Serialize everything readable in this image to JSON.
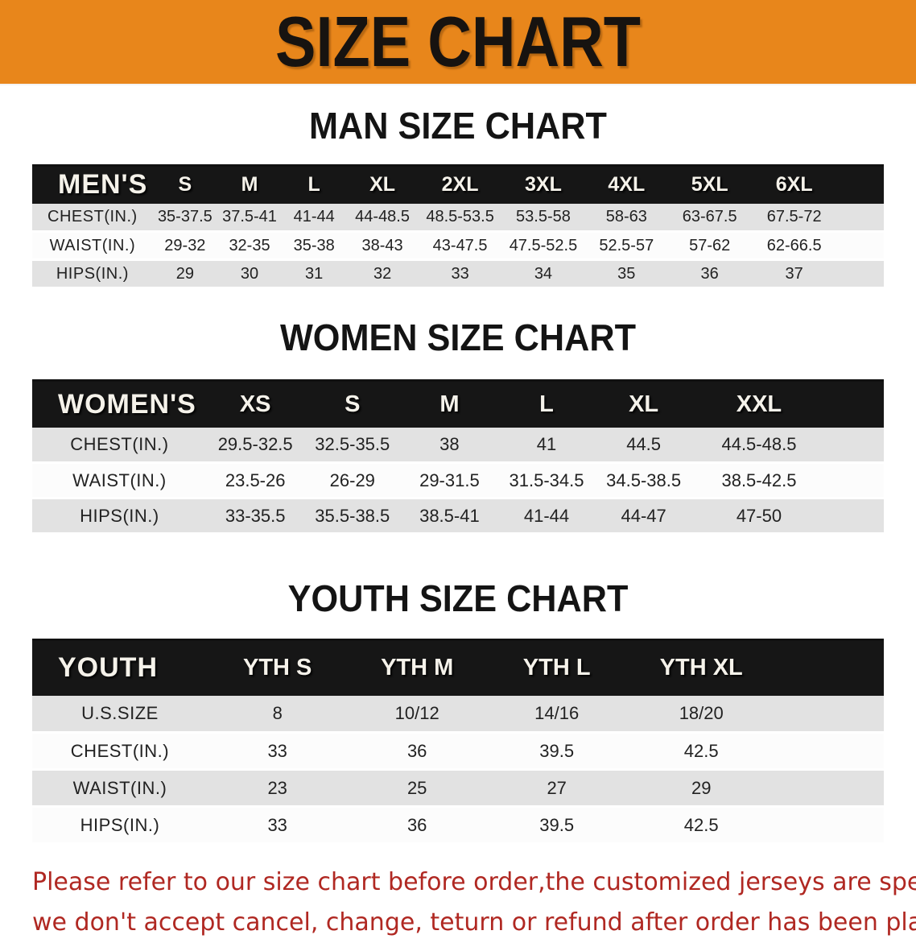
{
  "banner": {
    "title": "SIZE CHART",
    "bg_color": "#E8861B",
    "text_color": "#171310"
  },
  "colors": {
    "table_header_bg": "#161616",
    "row_alt_bg": "#E2E2E2",
    "row_white_bg": "#FCFCFC",
    "footer_text": "#B02822"
  },
  "sections": [
    {
      "title": "MAN SIZE CHART",
      "table": {
        "header_label": "MEN'S",
        "columns": [
          "S",
          "M",
          "L",
          "XL",
          "2XL",
          "3XL",
          "4XL",
          "5XL",
          "6XL"
        ],
        "rows": [
          {
            "label": "CHEST(IN.)",
            "values": [
              "35-37.5",
              "37.5-41",
              "41-44",
              "44-48.5",
              "48.5-53.5",
              "53.5-58",
              "58-63",
              "63-67.5",
              "67.5-72"
            ]
          },
          {
            "label": "WAIST(IN.)",
            "values": [
              "29-32",
              "32-35",
              "35-38",
              "38-43",
              "43-47.5",
              "47.5-52.5",
              "52.5-57",
              "57-62",
              "62-66.5"
            ]
          },
          {
            "label": "HIPS(IN.)",
            "values": [
              "29",
              "30",
              "31",
              "32",
              "33",
              "34",
              "35",
              "36",
              "37"
            ]
          }
        ]
      }
    },
    {
      "title": "WOMEN SIZE CHART",
      "table": {
        "header_label": "WOMEN'S",
        "columns": [
          "XS",
          "S",
          "M",
          "L",
          "XL",
          "XXL"
        ],
        "rows": [
          {
            "label": "CHEST(IN.)",
            "values": [
              "29.5-32.5",
              "32.5-35.5",
              "38",
              "41",
              "44.5",
              "44.5-48.5"
            ]
          },
          {
            "label": "WAIST(IN.)",
            "values": [
              "23.5-26",
              "26-29",
              "29-31.5",
              "31.5-34.5",
              "34.5-38.5",
              "38.5-42.5"
            ]
          },
          {
            "label": "HIPS(IN.)",
            "values": [
              "33-35.5",
              "35.5-38.5",
              "38.5-41",
              "41-44",
              "44-47",
              "47-50"
            ]
          }
        ]
      }
    },
    {
      "title": "YOUTH SIZE CHART",
      "table": {
        "header_label": "YOUTH",
        "columns": [
          "YTH S",
          "YTH M",
          "YTH L",
          "YTH XL"
        ],
        "rows": [
          {
            "label": "U.S.SIZE",
            "values": [
              "8",
              "10/12",
              "14/16",
              "18/20"
            ]
          },
          {
            "label": "CHEST(IN.)",
            "values": [
              "33",
              "36",
              "39.5",
              "42.5"
            ]
          },
          {
            "label": "WAIST(IN.)",
            "values": [
              "23",
              "25",
              "27",
              "29"
            ]
          },
          {
            "label": "HIPS(IN.)",
            "values": [
              "33",
              "36",
              "39.5",
              "42.5"
            ]
          }
        ]
      }
    }
  ],
  "footer": {
    "line1": "Please refer to our size chart before order,the customized jerseys are special products,",
    "line2": "we don't accept cancel, change, teturn or refund after order has been placed!"
  }
}
